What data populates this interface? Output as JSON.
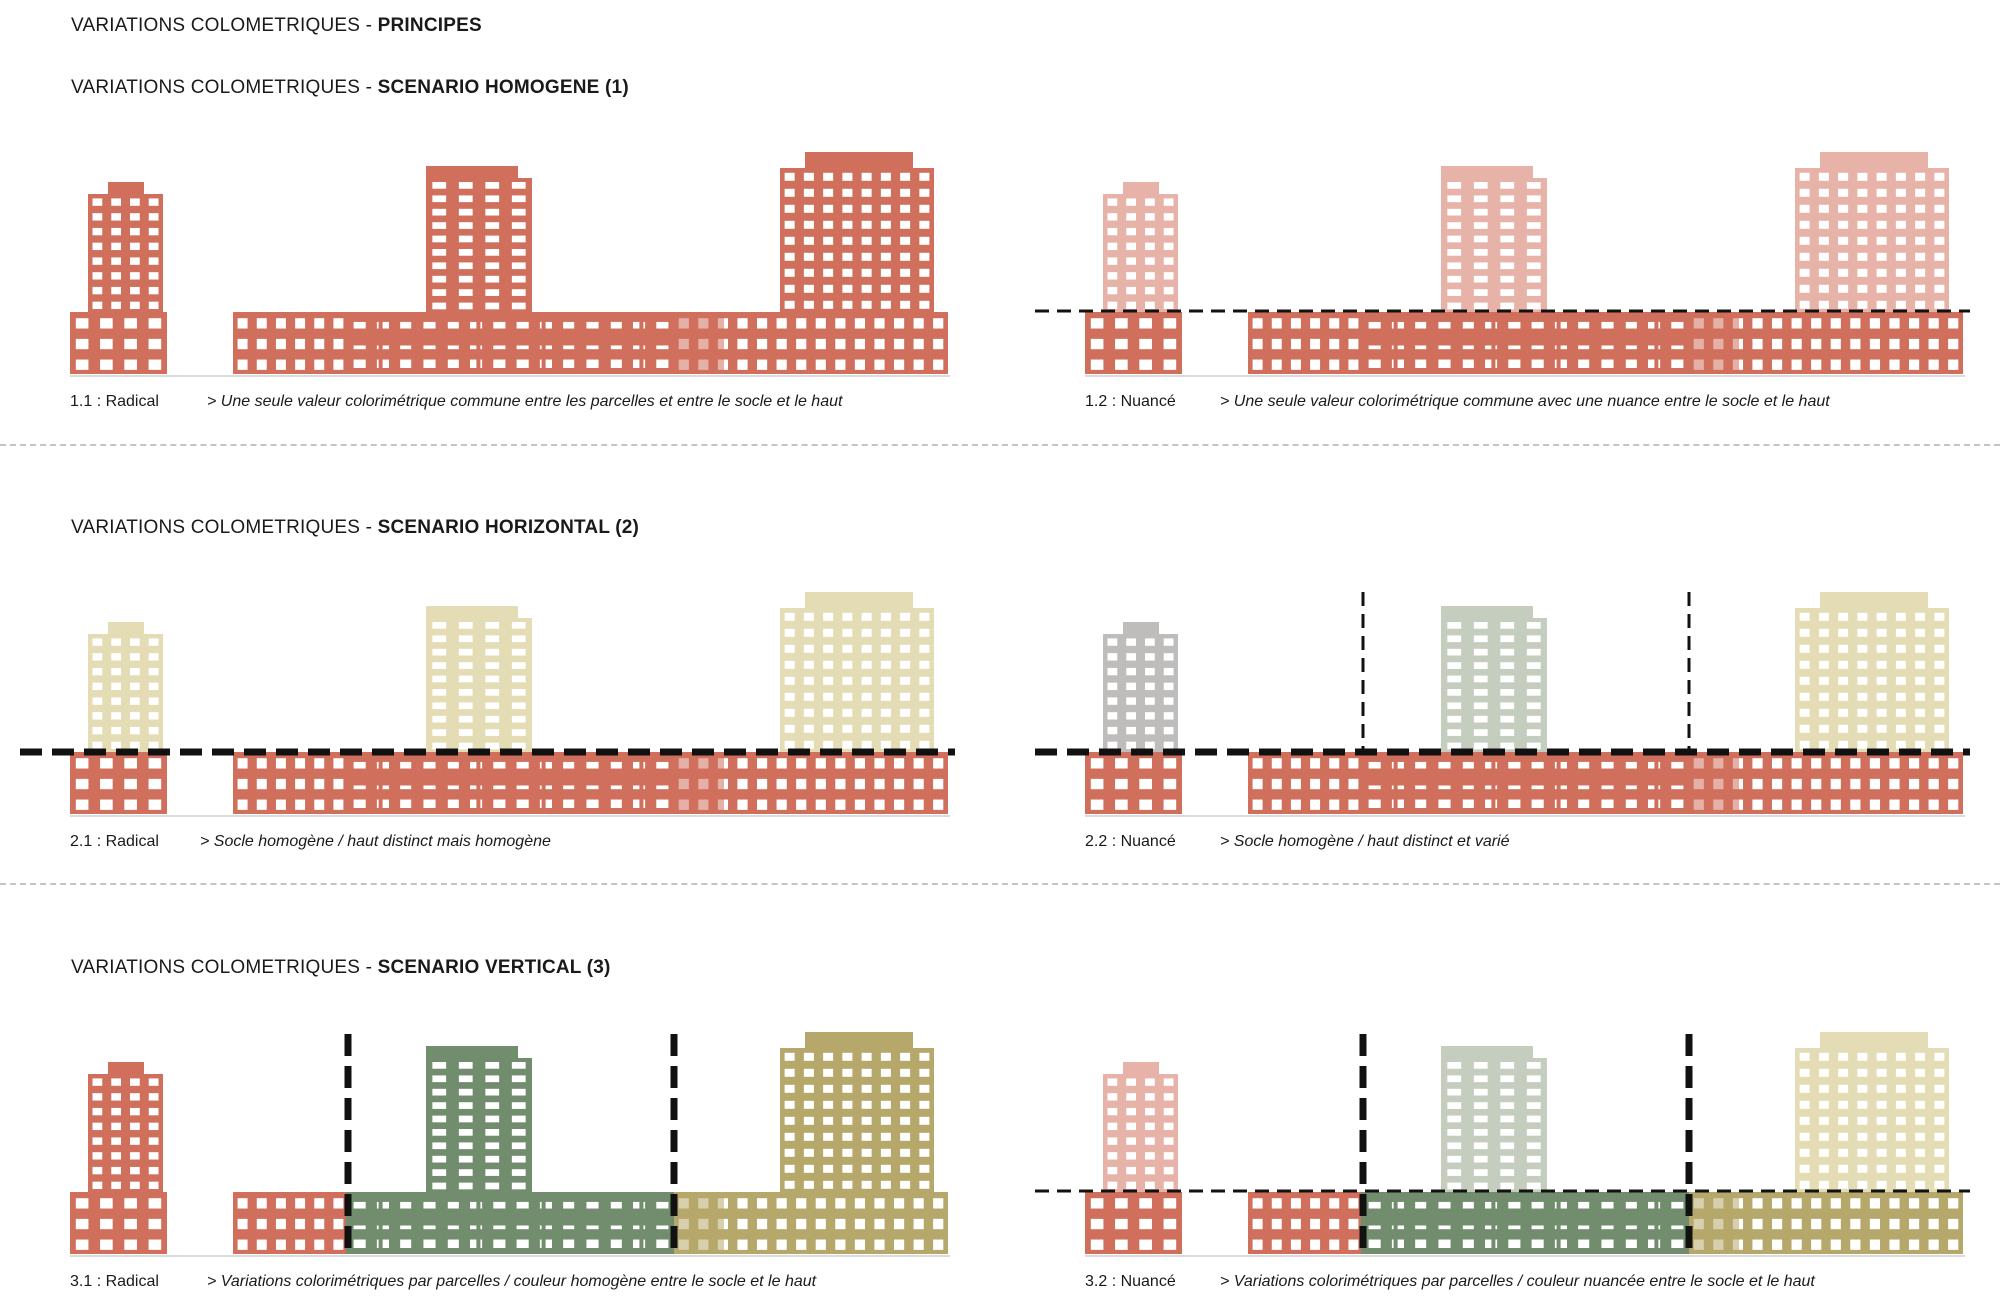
{
  "headings": [
    {
      "prefix": "VARIATIONS COLOMETRIQUES - ",
      "bold": "PRINCIPES"
    },
    {
      "prefix": "VARIATIONS COLOMETRIQUES - ",
      "bold": "SCENARIO HOMOGENE (1)"
    },
    {
      "prefix": "VARIATIONS COLOMETRIQUES - ",
      "bold": "SCENARIO HORIZONTAL (2)"
    },
    {
      "prefix": "VARIATIONS COLOMETRIQUES - ",
      "bold": "SCENARIO VERTICAL (3)"
    }
  ],
  "captions": [
    {
      "id": "1.1",
      "label": "1.1 : Radical",
      "text": "> Une seule valeur colorimétrique commune entre les parcelles et entre le socle et le haut"
    },
    {
      "id": "1.2",
      "label": "1.2 : Nuancé",
      "text": "> Une seule valeur colorimétrique commune avec une nuance entre le socle et le haut"
    },
    {
      "id": "2.1",
      "label": "2.1 : Radical",
      "text": "> Socle homogène / haut distinct mais homogène"
    },
    {
      "id": "2.2",
      "label": "2.2 : Nuancé",
      "text": "> Socle homogène / haut distinct et varié"
    },
    {
      "id": "3.1",
      "label": "3.1 : Radical",
      "text": "> Variations colorimétriques par parcelles / couleur homogène entre le socle et le haut"
    },
    {
      "id": "3.2",
      "label": "3.2 : Nuancé",
      "text": "> Variations colorimétriques par parcelles / couleur nuancée entre le socle et le haut"
    }
  ],
  "colors": {
    "terracotta": "#cf6f5c",
    "terracotta_light": "#e7b3a8",
    "sand_light": "#e3dcb4",
    "grey": "#bfbcbc",
    "sage_light": "#c5cdbf",
    "green": "#718d6d",
    "olive": "#b6a76a",
    "dashed_line": "#111111",
    "separator": "#c4c4c4"
  },
  "diagrams": [
    {
      "id": "1.1",
      "base": [
        "terracotta",
        "terracotta",
        "terracotta"
      ],
      "tops": [
        "terracotta",
        "terracotta",
        "terracotta"
      ],
      "hline": "none",
      "vlines": "none"
    },
    {
      "id": "1.2",
      "base": [
        "terracotta",
        "terracotta",
        "terracotta"
      ],
      "tops": [
        "terracotta_light",
        "terracotta_light",
        "terracotta_light"
      ],
      "hline": "thin",
      "vlines": "none"
    },
    {
      "id": "2.1",
      "base": [
        "terracotta",
        "terracotta",
        "terracotta"
      ],
      "tops": [
        "sand_light",
        "sand_light",
        "sand_light"
      ],
      "hline": "thick",
      "vlines": "none"
    },
    {
      "id": "2.2",
      "base": [
        "terracotta",
        "terracotta",
        "terracotta"
      ],
      "tops": [
        "grey",
        "sage_light",
        "sand_light"
      ],
      "hline": "thick",
      "vlines": "thin"
    },
    {
      "id": "3.1",
      "base": [
        "terracotta",
        "green",
        "olive"
      ],
      "tops": [
        "terracotta",
        "green",
        "olive"
      ],
      "hline": "none",
      "vlines": "thick"
    },
    {
      "id": "3.2",
      "base": [
        "terracotta",
        "green",
        "olive"
      ],
      "tops": [
        "terracotta_light",
        "sage_light",
        "sand_light"
      ],
      "hline": "thin",
      "vlines": "thick"
    }
  ]
}
